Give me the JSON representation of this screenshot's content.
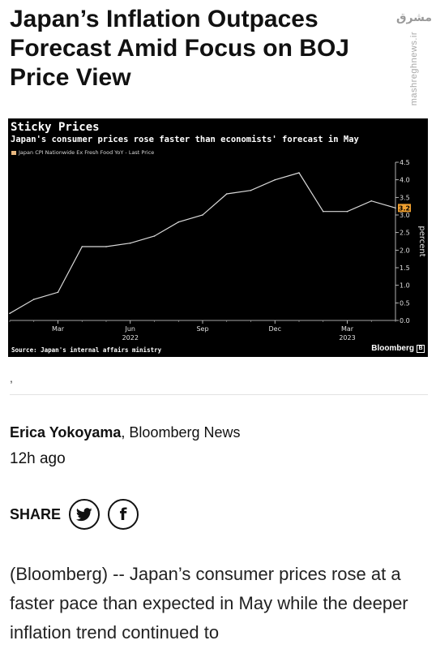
{
  "article": {
    "headline": "Japan’s Inflation Outpaces Forecast Amid Focus on BOJ Price View",
    "author": "Erica Yokoyama",
    "outlet": ", Bloomberg News",
    "timestamp": "12h ago",
    "caption_mark": ",",
    "share_label": "SHARE",
    "body": "(Bloomberg) -- Japan’s consumer prices rose at a faster pace than expected in May while the deeper inflation trend continued to"
  },
  "watermark": {
    "logo_text": "مشرق",
    "url": "mashreghnews.ir"
  },
  "share_icons": [
    "twitter-icon",
    "facebook-icon"
  ],
  "chart_data": {
    "type": "line",
    "title": "Sticky Prices",
    "subtitle": "Japan's consumer prices rose faster than economists' forecast in May",
    "legend": [
      "Japan CPI Nationwide Ex Fresh Food YoY - Last Price"
    ],
    "series": [
      {
        "name": "Japan CPI Nationwide Ex Fresh Food YoY - Last Price",
        "color": "#ffffff",
        "x": [
          "2022-01",
          "2022-02",
          "2022-03",
          "2022-04",
          "2022-05",
          "2022-06",
          "2022-07",
          "2022-08",
          "2022-09",
          "2022-10",
          "2022-11",
          "2022-12",
          "2023-01",
          "2023-02",
          "2023-03",
          "2023-04",
          "2023-05"
        ],
        "values": [
          0.2,
          0.6,
          0.8,
          2.1,
          2.1,
          2.2,
          2.4,
          2.8,
          3.0,
          3.6,
          3.7,
          4.0,
          4.2,
          3.1,
          3.1,
          3.4,
          3.2
        ]
      }
    ],
    "x_tick_labels": [
      "Mar",
      "Jun",
      "Sep",
      "Dec",
      "Mar"
    ],
    "x_year_labels": [
      "2022",
      "2023"
    ],
    "y_tick_labels": [
      "0.0",
      "0.5",
      "1.0",
      "1.5",
      "2.0",
      "2.5",
      "3.0",
      "3.5",
      "4.0",
      "4.5"
    ],
    "ylabel": "percent",
    "ylim": [
      0,
      4.5
    ],
    "last_value_label": "3.2",
    "last_value_color": "#f0a030",
    "source": "Source: Japan's internal affairs ministry",
    "brand": "Bloomberg",
    "grid": false,
    "background": "#000000"
  }
}
